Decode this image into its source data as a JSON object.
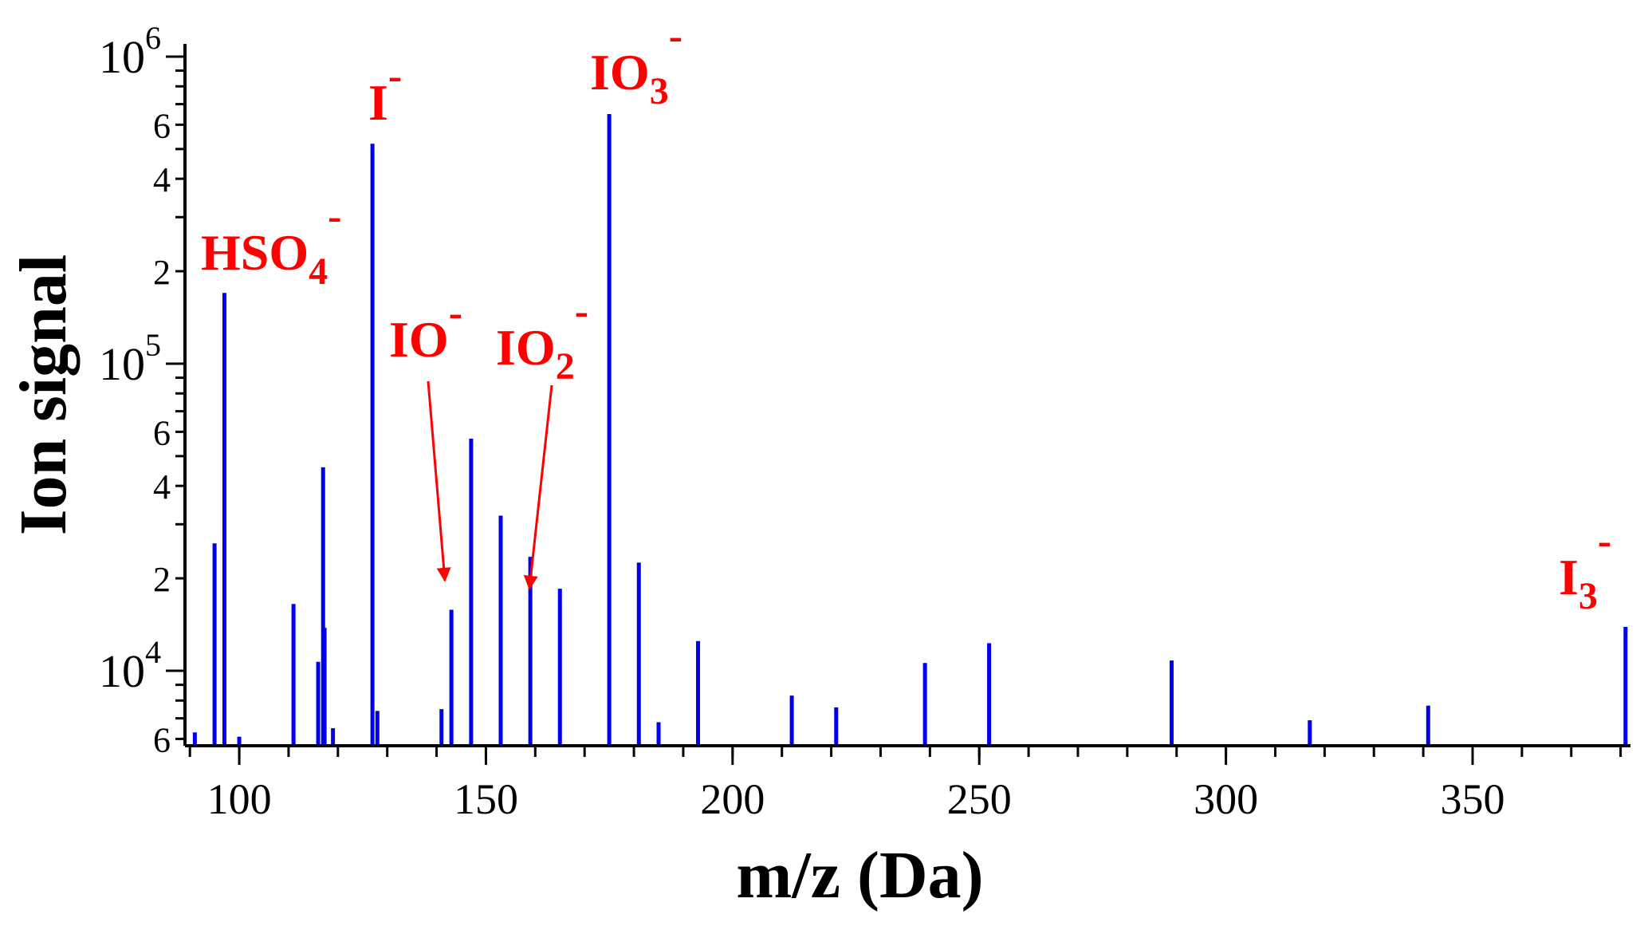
{
  "chart_data": {
    "type": "bar",
    "xlabel": "m/z (Da)",
    "ylabel": "Ion signal",
    "xlim": [
      89,
      382
    ],
    "ylim": [
      5700,
      1100000
    ],
    "yscale": "log",
    "grid": false,
    "x_ticks": [
      100,
      150,
      200,
      250,
      300,
      350
    ],
    "y_decade_ticks": [
      {
        "value": 10000,
        "base": "10",
        "exp": "4"
      },
      {
        "value": 100000,
        "base": "10",
        "exp": "5"
      },
      {
        "value": 1000000,
        "base": "10",
        "exp": "6"
      }
    ],
    "y_minor_ticks": [
      {
        "value": 6000,
        "label": "6"
      },
      {
        "value": 20000,
        "label": "2"
      },
      {
        "value": 40000,
        "label": "4"
      },
      {
        "value": 60000,
        "label": "6"
      },
      {
        "value": 200000,
        "label": "2"
      },
      {
        "value": 400000,
        "label": "4"
      },
      {
        "value": 600000,
        "label": "6"
      }
    ],
    "series": [
      {
        "color": "#0000ee",
        "x": [
          91,
          95,
          97,
          100,
          111,
          116,
          117,
          117.3,
          119,
          127,
          128,
          141,
          143,
          147,
          153,
          159,
          165,
          175,
          181,
          185,
          193,
          212,
          221,
          239,
          252,
          289,
          317,
          341,
          381
        ],
        "values": [
          6300,
          26000,
          170000,
          6100,
          16500,
          10700,
          46000,
          13800,
          6500,
          520000,
          7400,
          7500,
          15800,
          57000,
          32000,
          23500,
          18500,
          650000,
          22500,
          6800,
          12500,
          8300,
          7600,
          10600,
          12300,
          10800,
          6900,
          7700,
          13900
        ]
      }
    ],
    "annotations": [
      {
        "id": "hso4",
        "main": "HSO",
        "sub": "4",
        "sup": "-",
        "x": 97,
        "color": "#ff0000"
      },
      {
        "id": "i",
        "main": "I",
        "sub": "",
        "sup": "-",
        "x": 127,
        "color": "#ff0000"
      },
      {
        "id": "io3",
        "main": "IO",
        "sub": "3",
        "sup": "-",
        "x": 175,
        "color": "#ff0000"
      },
      {
        "id": "io",
        "main": "IO",
        "sub": "",
        "sup": "-",
        "x": 143,
        "color": "#ff0000"
      },
      {
        "id": "io2",
        "main": "IO",
        "sub": "2",
        "sup": "-",
        "x": 159,
        "color": "#ff0000"
      },
      {
        "id": "i3",
        "main": "I",
        "sub": "3",
        "sup": "-",
        "x": 381,
        "color": "#ff0000"
      }
    ]
  }
}
